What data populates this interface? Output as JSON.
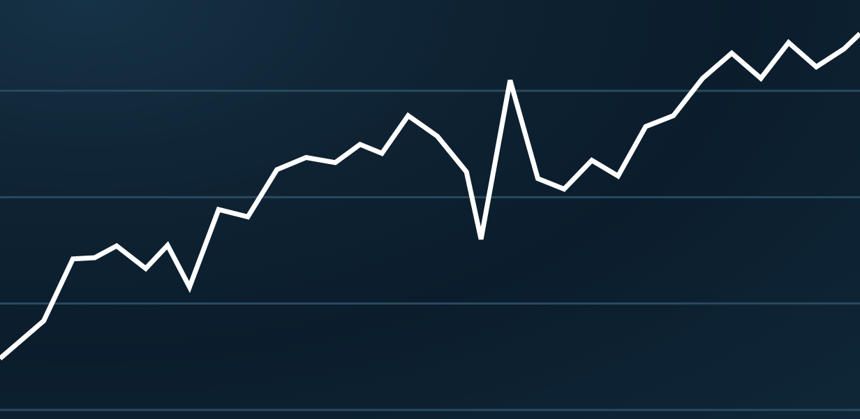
{
  "colors": {
    "background": "#0e2232",
    "gridline": "#2a4a60",
    "line": "#ffffff"
  },
  "chart_data": {
    "type": "line",
    "title": "",
    "xlabel": "",
    "ylabel": "",
    "grid": true,
    "legend": "none",
    "ylim": [
      0,
      100
    ],
    "yticks": [
      0,
      33.33,
      66.67,
      100
    ],
    "x": [
      0,
      3,
      5,
      6.5,
      8,
      10,
      11.5,
      13,
      15,
      17,
      19,
      21,
      23,
      24.7,
      26.2,
      28,
      30,
      32,
      33,
      35,
      36.9,
      38.7,
      40.6,
      42.4,
      44.3,
      46.2,
      48.2,
      50.2,
      52.2,
      54.1,
      56,
      57.9,
      59
    ],
    "series": [
      {
        "values": [
          16.1,
          27.9,
          47.3,
          47.7,
          51.4,
          44.3,
          51.6,
          38.5,
          62.8,
          60.5,
          75.3,
          79.1,
          77.5,
          83.2,
          80.4,
          92.2,
          85.8,
          74.6,
          53.5,
          103.3,
          72.5,
          69.2,
          78.2,
          73.3,
          88.8,
          92.2,
          103.9,
          111.8,
          103.9,
          115.1,
          107.5,
          113.1,
          117.9
        ]
      }
    ]
  }
}
